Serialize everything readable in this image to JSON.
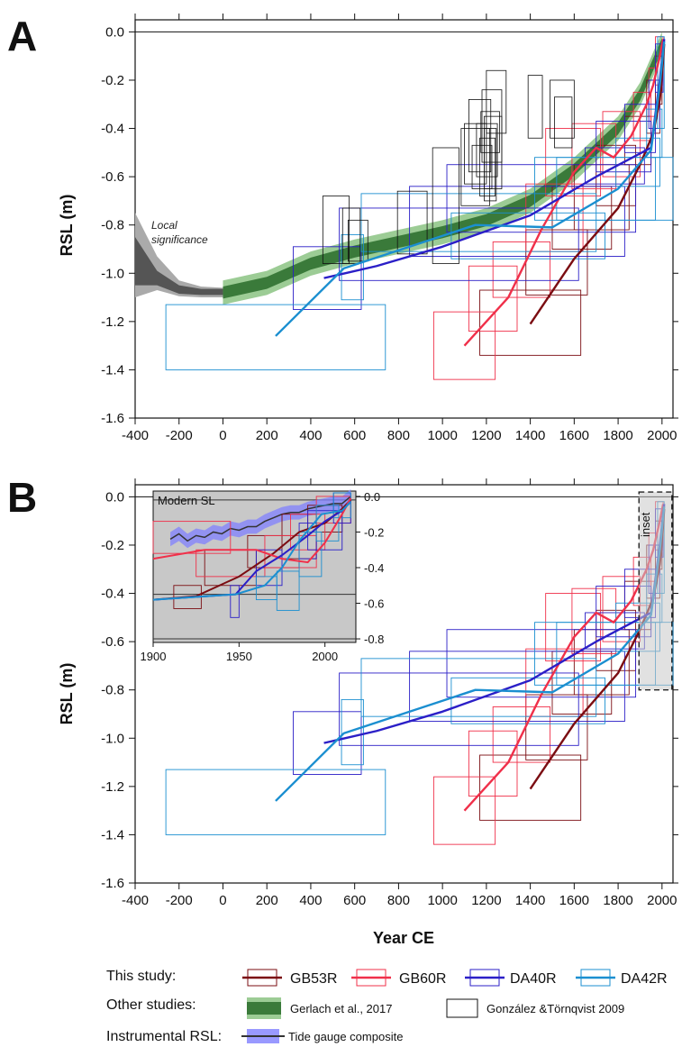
{
  "colors": {
    "GB53R": "#7b0d12",
    "GB60R": "#f0304a",
    "DA40R": "#2b1fc7",
    "DA42R": "#1b8fd0",
    "gerlach_dark": "#3a7a3a",
    "gerlach_light": "#9ccc95",
    "gonzalez": "#111111",
    "tide": "#8080ff",
    "local_dark": "#555555",
    "local_light": "#aaaaaa",
    "inset_bg": "#c8c8c8"
  },
  "chart_data": [
    {
      "panel": "A",
      "type": "line",
      "xlabel": "",
      "ylabel": "RSL (m)",
      "xlim": [
        -400,
        2050
      ],
      "ylim": [
        -1.6,
        0.05
      ],
      "xticks": [
        "-400",
        "-200",
        "0",
        "200",
        "400",
        "600",
        "800",
        "1000",
        "1200",
        "1400",
        "1600",
        "1800",
        "2000"
      ],
      "yticks": [
        "0.0",
        "-0.2",
        "-0.4",
        "-0.6",
        "-0.8",
        "-1.0",
        "-1.2",
        "-1.4",
        "-1.6"
      ],
      "annotation": [
        "Local",
        "significance"
      ],
      "series": [
        {
          "name": "GB53R",
          "x": [
            1400,
            1600,
            1800,
            1900,
            1960,
            1990,
            2000,
            2010
          ],
          "y": [
            -1.21,
            -0.94,
            -0.73,
            -0.55,
            -0.42,
            -0.28,
            -0.18,
            -0.05
          ]
        },
        {
          "name": "GB60R",
          "x": [
            1100,
            1300,
            1450,
            1600,
            1700,
            1780,
            1860,
            1930,
            1960,
            1990,
            2005
          ],
          "y": [
            -1.3,
            -1.1,
            -0.82,
            -0.58,
            -0.48,
            -0.52,
            -0.43,
            -0.3,
            -0.22,
            -0.1,
            -0.03
          ]
        },
        {
          "name": "DA40R",
          "x": [
            460,
            700,
            1000,
            1400,
            1700,
            1950,
            1990,
            2010
          ],
          "y": [
            -1.02,
            -0.97,
            -0.89,
            -0.76,
            -0.6,
            -0.48,
            -0.2,
            -0.03
          ]
        },
        {
          "name": "DA42R",
          "x": [
            240,
            550,
            1150,
            1500,
            1800,
            1950,
            1990,
            2010
          ],
          "y": [
            -1.26,
            -0.98,
            -0.8,
            -0.81,
            -0.65,
            -0.49,
            -0.22,
            -0.04
          ]
        }
      ],
      "gerlach": {
        "x": [
          0,
          200,
          400,
          600,
          800,
          1000,
          1200,
          1400,
          1600,
          1800,
          1900,
          2000
        ],
        "y": [
          -1.08,
          -1.04,
          -0.96,
          -0.91,
          -0.87,
          -0.83,
          -0.78,
          -0.7,
          -0.57,
          -0.4,
          -0.26,
          -0.05
        ],
        "inner": 0.025,
        "outer": 0.05
      },
      "local": {
        "x": [
          -400,
          -300,
          -200,
          -100,
          0
        ],
        "y": [
          -0.95,
          -1.02,
          -1.07,
          -1.08,
          -1.08
        ],
        "inner_top": [
          -0.85,
          -0.99,
          -1.05,
          -1.065,
          -1.065
        ],
        "inner_bot": [
          -1.05,
          -1.05,
          -1.085,
          -1.09,
          -1.09
        ],
        "outer_top": [
          -0.75,
          -0.93,
          -1.03,
          -1.055,
          -1.06
        ],
        "outer_bot": [
          -1.1,
          -1.07,
          -1.095,
          -1.1,
          -1.1
        ]
      },
      "gonzalez_boxes": [
        [
          455,
          575,
          -0.96,
          -0.68
        ],
        [
          545,
          625,
          -0.96,
          -0.73
        ],
        [
          570,
          660,
          -0.95,
          -0.78
        ],
        [
          795,
          930,
          -0.92,
          -0.66
        ],
        [
          955,
          1075,
          -0.96,
          -0.48
        ],
        [
          1085,
          1215,
          -0.72,
          -0.4
        ],
        [
          1100,
          1200,
          -0.63,
          -0.38
        ],
        [
          1120,
          1220,
          -0.58,
          -0.28
        ],
        [
          1135,
          1225,
          -0.65,
          -0.47
        ],
        [
          1155,
          1250,
          -0.6,
          -0.38
        ],
        [
          1170,
          1240,
          -0.68,
          -0.44
        ],
        [
          1180,
          1270,
          -0.54,
          -0.24
        ],
        [
          1175,
          1260,
          -0.5,
          -0.33
        ],
        [
          1190,
          1245,
          -0.7,
          -0.4
        ],
        [
          1200,
          1290,
          -0.42,
          -0.16
        ],
        [
          1190,
          1270,
          -0.65,
          -0.35
        ],
        [
          1390,
          1455,
          -0.44,
          -0.18
        ],
        [
          1490,
          1600,
          -0.44,
          -0.2
        ],
        [
          1510,
          1590,
          -0.48,
          -0.27
        ]
      ],
      "box_sets": [
        {
          "name": "GB53R",
          "boxes": [
            [
              1170,
              1630,
              -1.34,
              -1.07
            ],
            [
              1380,
              1660,
              -1.09,
              -0.82
            ],
            [
              1500,
              1770,
              -0.9,
              -0.64
            ],
            [
              1600,
              1850,
              -0.82,
              -0.55
            ],
            [
              1700,
              1880,
              -0.72,
              -0.47
            ],
            [
              1830,
              1950,
              -0.55,
              -0.35
            ],
            [
              1930,
              1990,
              -0.42,
              -0.2
            ],
            [
              1970,
              2000,
              -0.3,
              -0.1
            ]
          ]
        },
        {
          "name": "GB60R",
          "boxes": [
            [
              960,
              1240,
              -1.44,
              -1.16
            ],
            [
              1120,
              1340,
              -1.24,
              -0.97
            ],
            [
              1230,
              1490,
              -1.1,
              -0.87
            ],
            [
              1380,
              1640,
              -0.91,
              -0.63
            ],
            [
              1470,
              1720,
              -0.68,
              -0.4
            ],
            [
              1590,
              1790,
              -0.65,
              -0.38
            ],
            [
              1730,
              1900,
              -0.6,
              -0.33
            ],
            [
              1870,
              1950,
              -0.45,
              -0.25
            ],
            [
              1940,
              1980,
              -0.35,
              -0.15
            ],
            [
              1970,
              2005,
              -0.22,
              -0.02
            ]
          ]
        },
        {
          "name": "DA40R",
          "boxes": [
            [
              320,
              630,
              -1.15,
              -0.89
            ],
            [
              530,
              1620,
              -1.03,
              -0.73
            ],
            [
              850,
              1830,
              -0.93,
              -0.64
            ],
            [
              1020,
              1880,
              -0.83,
              -0.55
            ],
            [
              1650,
              1920,
              -0.63,
              -0.48
            ],
            [
              1700,
              1950,
              -0.58,
              -0.37
            ],
            [
              1830,
              1970,
              -0.5,
              -0.3
            ],
            [
              1940,
              1990,
              -0.4,
              -0.2
            ],
            [
              1970,
              2005,
              -0.25,
              -0.05
            ]
          ]
        },
        {
          "name": "DA42R",
          "boxes": [
            [
              -260,
              740,
              -1.4,
              -1.13
            ],
            [
              540,
              640,
              -1.11,
              -0.84
            ],
            [
              630,
              1700,
              -0.91,
              -0.67
            ],
            [
              1040,
              1740,
              -0.94,
              -0.75
            ],
            [
              1420,
              1970,
              -0.78,
              -0.52
            ],
            [
              1520,
              2050,
              -0.78,
              -0.52
            ],
            [
              1790,
              1990,
              -0.64,
              -0.44
            ],
            [
              1930,
              2000,
              -0.52,
              -0.32
            ],
            [
              1980,
              2010,
              -0.4,
              -0.02
            ]
          ]
        }
      ]
    },
    {
      "panel": "B",
      "type": "line",
      "xlabel": "Year CE",
      "ylabel": "RSL (m)",
      "xlim": [
        -400,
        2050
      ],
      "ylim": [
        -1.6,
        0.05
      ],
      "xticks": [
        "-400",
        "-200",
        "0",
        "200",
        "400",
        "600",
        "800",
        "1000",
        "1200",
        "1400",
        "1600",
        "1800",
        "2000"
      ],
      "yticks": [
        "0.0",
        "-0.2",
        "-0.4",
        "-0.6",
        "-0.8",
        "-1.0",
        "-1.2",
        "-1.4",
        "-1.6"
      ],
      "inset_label": "inset",
      "inset": {
        "title": "Modern SL",
        "xlim": [
          1900,
          2018
        ],
        "ylim": [
          -0.82,
          0.03
        ],
        "xticks": [
          "1900",
          "1950",
          "2000"
        ],
        "yticks": [
          "0.0",
          "-0.2",
          "-0.4",
          "-0.6",
          "-0.8"
        ],
        "tide": {
          "x": [
            1910,
            1915,
            1920,
            1925,
            1930,
            1935,
            1940,
            1945,
            1950,
            1955,
            1960,
            1965,
            1970,
            1975,
            1980,
            1985,
            1990,
            1995,
            2000,
            2005,
            2010,
            2015
          ],
          "y": [
            -0.24,
            -0.21,
            -0.25,
            -0.22,
            -0.23,
            -0.2,
            -0.21,
            -0.18,
            -0.19,
            -0.17,
            -0.17,
            -0.14,
            -0.12,
            -0.1,
            -0.09,
            -0.09,
            -0.07,
            -0.06,
            -0.05,
            -0.04,
            -0.04,
            0.0
          ]
        },
        "series": [
          {
            "name": "GB53R",
            "x": [
              1900,
              1925,
              1950,
              1970,
              1985,
              2000,
              2010,
              2015
            ],
            "y": [
              -0.58,
              -0.56,
              -0.45,
              -0.32,
              -0.2,
              -0.15,
              -0.07,
              -0.02
            ]
          },
          {
            "name": "GB60R",
            "x": [
              1900,
              1930,
              1960,
              1975,
              1990,
              2000,
              2010,
              2015
            ],
            "y": [
              -0.35,
              -0.3,
              -0.3,
              -0.35,
              -0.37,
              -0.26,
              -0.1,
              -0.01
            ]
          },
          {
            "name": "DA40R",
            "x": [
              1900,
              1948,
              1960,
              1975,
              1990,
              2000,
              2010,
              2015
            ],
            "y": [
              -0.58,
              -0.55,
              -0.42,
              -0.33,
              -0.22,
              -0.14,
              -0.08,
              -0.03
            ]
          },
          {
            "name": "DA42R",
            "x": [
              1900,
              1948,
              1965,
              1975,
              1985,
              1998,
              2010,
              2015
            ],
            "y": [
              -0.58,
              -0.55,
              -0.5,
              -0.4,
              -0.25,
              -0.1,
              -0.08,
              -0.03
            ]
          }
        ],
        "boxes": [
          {
            "name": "GB53R",
            "boxes": [
              [
                1912,
                1928,
                -0.63,
                -0.5
              ],
              [
                1930,
                1960,
                -0.5,
                -0.3
              ],
              [
                1955,
                1985,
                -0.4,
                -0.22
              ],
              [
                1975,
                1995,
                -0.35,
                -0.1
              ],
              [
                1990,
                2010,
                -0.2,
                -0.05
              ]
            ]
          },
          {
            "name": "GB60R",
            "boxes": [
              [
                1900,
                1945,
                -0.32,
                -0.14
              ],
              [
                1925,
                1965,
                -0.45,
                -0.3
              ],
              [
                1965,
                1995,
                -0.4,
                -0.22
              ],
              [
                1980,
                2000,
                -0.3,
                -0.1
              ],
              [
                1995,
                2015,
                -0.15,
                0.0
              ]
            ]
          },
          {
            "name": "DA40R",
            "boxes": [
              [
                1945,
                1950,
                -0.68,
                -0.5
              ],
              [
                1960,
                1975,
                -0.5,
                -0.3
              ],
              [
                1985,
                1995,
                -0.35,
                -0.15
              ],
              [
                1990,
                2010,
                -0.3,
                -0.08
              ],
              [
                2005,
                2015,
                -0.15,
                0.02
              ]
            ]
          },
          {
            "name": "DA42R",
            "boxes": [
              [
                1960,
                1972,
                -0.58,
                -0.45
              ],
              [
                1972,
                1985,
                -0.64,
                -0.42
              ],
              [
                1985,
                1998,
                -0.45,
                -0.2
              ],
              [
                1995,
                2008,
                -0.25,
                -0.05
              ],
              [
                2005,
                2015,
                -0.12,
                0.02
              ]
            ]
          }
        ]
      }
    }
  ],
  "legend": {
    "this_study_label": "This study:",
    "other_studies_label": "Other studies:",
    "instrumental_label": "Instrumental RSL:",
    "gb53r": "GB53R",
    "gb60r": "GB60R",
    "da40r": "DA40R",
    "da42r": "DA42R",
    "gerlach": "Gerlach et al., 2017",
    "gonzalez": "González &Törnqvist 2009",
    "tide": "Tide gauge composite"
  },
  "panel_letters": {
    "a": "A",
    "b": "B"
  }
}
